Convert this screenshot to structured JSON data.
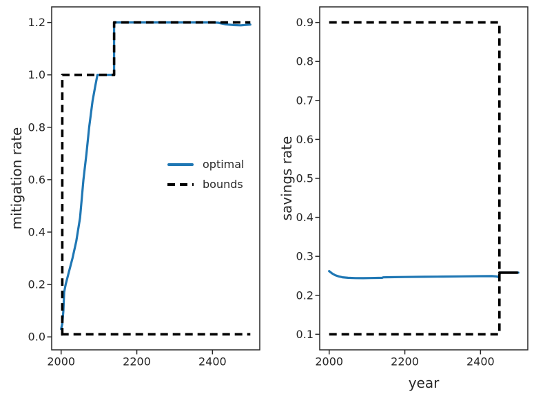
{
  "figure": {
    "background": "#ffffff",
    "axes_color": "#262626",
    "text_color": "#262626",
    "optimal_color": "#1f77b4",
    "bounds_color": "#000000"
  },
  "legend": {
    "panel": "mitigation",
    "frame": false,
    "entries": [
      {
        "label": "optimal",
        "color": "#1f77b4",
        "linestyle": "solid"
      },
      {
        "label": "bounds",
        "color": "#000000",
        "linestyle": "dashed"
      }
    ]
  },
  "chart_data": [
    {
      "type": "line",
      "name": "mitigation",
      "title": "",
      "xlabel": "",
      "ylabel": "mitigation rate",
      "xlim": [
        1975,
        2525
      ],
      "ylim": [
        -0.0495,
        1.2595
      ],
      "xticks": [
        2000,
        2200,
        2400
      ],
      "yticks": [
        0.0,
        0.2,
        0.4,
        0.6,
        0.8,
        1.0,
        1.2
      ],
      "ytick_labels": [
        "0.0",
        "0.2",
        "0.4",
        "0.6",
        "0.8",
        "1.0",
        "1.2"
      ],
      "grid": false,
      "series": [
        {
          "name": "optimal",
          "color": "#1f77b4",
          "linestyle": "solid",
          "x": [
            2000,
            2003,
            2006,
            2008,
            2012,
            2020,
            2030,
            2040,
            2050,
            2059,
            2067,
            2074,
            2083,
            2090,
            2096,
            2140,
            2140,
            2400,
            2415,
            2435,
            2455,
            2475,
            2500
          ],
          "y": [
            0.03,
            0.05,
            0.1,
            0.17,
            0.2,
            0.245,
            0.3,
            0.365,
            0.455,
            0.6,
            0.7,
            0.8,
            0.9,
            0.955,
            1.0,
            1.0,
            1.2,
            1.2,
            1.199,
            1.193,
            1.19,
            1.189,
            1.192
          ]
        },
        {
          "name": "bounds_upper",
          "color": "#000000",
          "linestyle": "dashed",
          "x": [
            2000,
            2003,
            2003,
            2140,
            2140,
            2500
          ],
          "y": [
            0.01,
            0.01,
            1.0,
            1.0,
            1.2,
            1.2
          ]
        },
        {
          "name": "bounds_lower",
          "color": "#000000",
          "linestyle": "dashed",
          "x": [
            2000,
            2500
          ],
          "y": [
            0.01,
            0.01
          ]
        }
      ]
    },
    {
      "type": "line",
      "name": "savings",
      "title": "",
      "xlabel": "year",
      "ylabel": "savings rate",
      "xlim": [
        1975,
        2525
      ],
      "ylim": [
        0.06,
        0.94
      ],
      "xticks": [
        2000,
        2200,
        2400
      ],
      "yticks": [
        0.1,
        0.2,
        0.3,
        0.4,
        0.5,
        0.6,
        0.7,
        0.8,
        0.9
      ],
      "ytick_labels": [
        "0.1",
        "0.2",
        "0.3",
        "0.4",
        "0.5",
        "0.6",
        "0.7",
        "0.8",
        "0.9"
      ],
      "grid": false,
      "series": [
        {
          "name": "optimal",
          "color": "#1f77b4",
          "linestyle": "solid",
          "x": [
            2000,
            2008,
            2016,
            2025,
            2035,
            2050,
            2070,
            2090,
            2110,
            2130,
            2140,
            2143,
            2160,
            2200,
            2250,
            2300,
            2350,
            2400,
            2430,
            2442,
            2447,
            2450,
            2452,
            2500
          ],
          "y": [
            0.262,
            0.256,
            0.2515,
            0.2485,
            0.2462,
            0.2448,
            0.2441,
            0.244,
            0.2443,
            0.2447,
            0.2449,
            0.2461,
            0.2464,
            0.2469,
            0.2475,
            0.248,
            0.2486,
            0.2491,
            0.2492,
            0.2483,
            0.2468,
            0.253,
            0.258,
            0.258
          ]
        },
        {
          "name": "bounds_upper",
          "color": "#000000",
          "linestyle": "dashed",
          "x": [
            2000,
            2450,
            2450
          ],
          "y": [
            0.9,
            0.9,
            0.258
          ]
        },
        {
          "name": "bounds_lower",
          "color": "#000000",
          "linestyle": "dashed",
          "x": [
            2000,
            2450,
            2450
          ],
          "y": [
            0.1,
            0.1,
            0.258
          ]
        },
        {
          "name": "bounds_fixed",
          "color": "#000000",
          "linestyle": "solid",
          "x": [
            2450,
            2497
          ],
          "y": [
            0.258,
            0.258
          ]
        }
      ]
    }
  ]
}
